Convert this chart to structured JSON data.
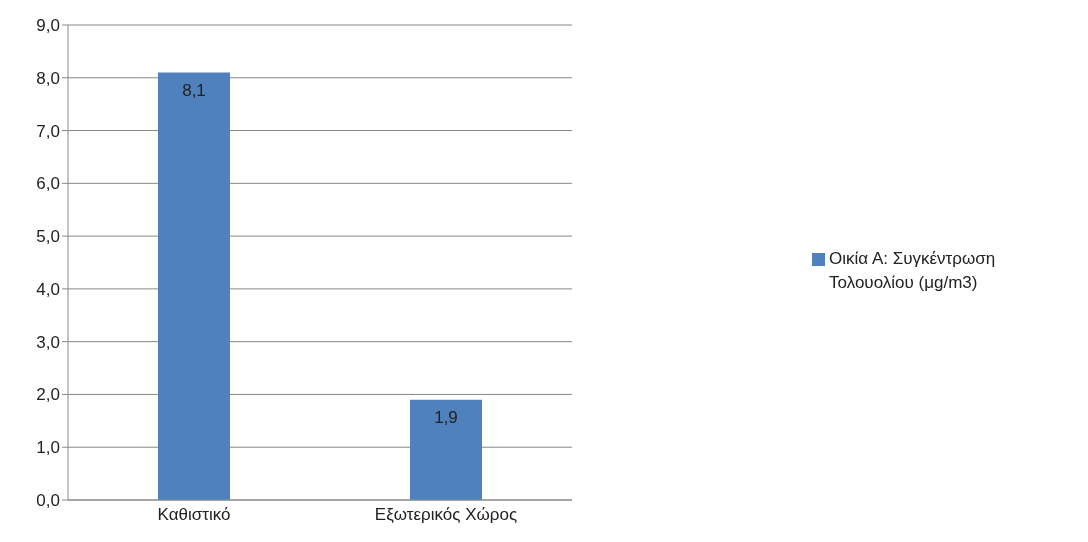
{
  "chart_data": {
    "type": "bar",
    "categories": [
      "Καθιστικό",
      "Εξωτερικός Χώρος"
    ],
    "series": [
      {
        "name": "Οικία Α: Συγκέντρωση Τολουολίου (μg/m3)",
        "color": "#4f81bd",
        "values": [
          8.1,
          1.9
        ],
        "value_labels": [
          "8,1",
          "1,9"
        ]
      }
    ],
    "ylim": [
      0,
      9
    ],
    "yticks": [
      {
        "value": 0,
        "label": "0,0"
      },
      {
        "value": 1,
        "label": "1,0"
      },
      {
        "value": 2,
        "label": "2,0"
      },
      {
        "value": 3,
        "label": "3,0"
      },
      {
        "value": 4,
        "label": "4,0"
      },
      {
        "value": 5,
        "label": "5,0"
      },
      {
        "value": 6,
        "label": "6,0"
      },
      {
        "value": 7,
        "label": "7,0"
      },
      {
        "value": 8,
        "label": "8,0"
      },
      {
        "value": 9,
        "label": "9,0"
      }
    ],
    "grid": "y",
    "legend": "right"
  }
}
